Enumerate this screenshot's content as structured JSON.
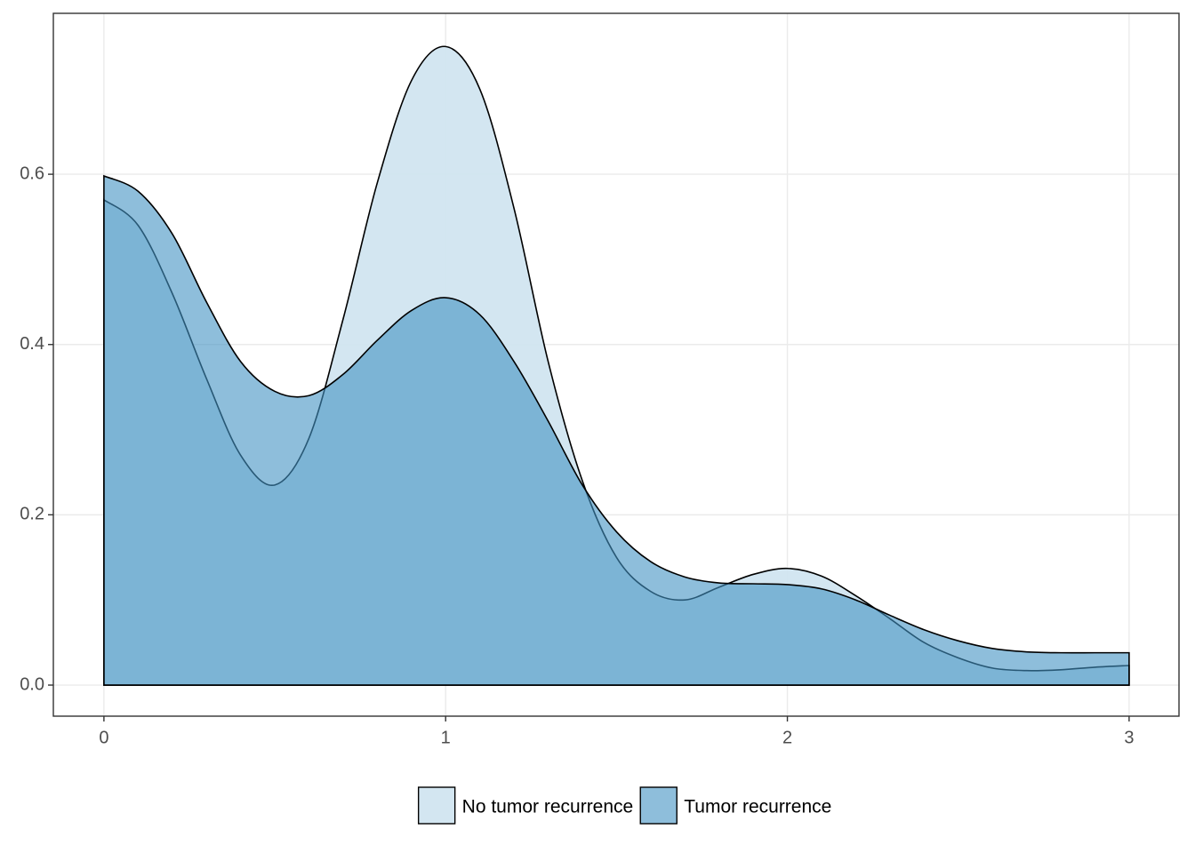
{
  "chart_data": {
    "type": "density",
    "x": [
      0,
      0.1,
      0.2,
      0.3,
      0.4,
      0.5,
      0.6,
      0.7,
      0.8,
      0.9,
      1.0,
      1.1,
      1.2,
      1.3,
      1.4,
      1.5,
      1.6,
      1.7,
      1.8,
      1.9,
      2.0,
      2.1,
      2.2,
      2.3,
      2.4,
      2.5,
      2.6,
      2.7,
      2.8,
      2.9,
      3.0
    ],
    "series": [
      {
        "name": "No tumor recurrence",
        "color": "#d1e5f0",
        "values": [
          0.57,
          0.54,
          0.46,
          0.36,
          0.27,
          0.235,
          0.29,
          0.43,
          0.59,
          0.71,
          0.75,
          0.7,
          0.56,
          0.38,
          0.24,
          0.15,
          0.11,
          0.1,
          0.115,
          0.13,
          0.137,
          0.128,
          0.105,
          0.078,
          0.05,
          0.032,
          0.02,
          0.017,
          0.018,
          0.021,
          0.023
        ]
      },
      {
        "name": "Tumor recurrence",
        "color": "#4393c3",
        "values": [
          0.598,
          0.58,
          0.53,
          0.45,
          0.38,
          0.345,
          0.34,
          0.365,
          0.405,
          0.44,
          0.455,
          0.435,
          0.38,
          0.31,
          0.235,
          0.18,
          0.145,
          0.127,
          0.12,
          0.119,
          0.118,
          0.113,
          0.1,
          0.082,
          0.065,
          0.052,
          0.043,
          0.039,
          0.038,
          0.038,
          0.038
        ]
      }
    ],
    "xlim": [
      -0.148,
      3.146
    ],
    "xticks": [
      0,
      1,
      2,
      3
    ],
    "ylim": [
      -0.0365,
      0.789
    ],
    "yticks": [
      {
        "value": 0,
        "label": "0.0"
      },
      0.2,
      0.4,
      0.6
    ],
    "grid": true,
    "legend": "bottom"
  }
}
